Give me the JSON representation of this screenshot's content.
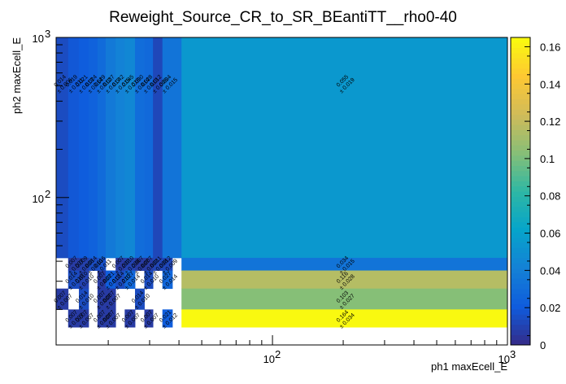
{
  "chart_data": {
    "type": "heatmap",
    "title": "Reweight_Source_CR_to_SR_BEantiTT__rho0-40",
    "xlabel": "ph1 maxEcell_E",
    "ylabel": "ph2 maxEcell_E",
    "x_scale": "log",
    "y_scale": "log",
    "xlim": [
      12,
      1000
    ],
    "ylim": [
      12,
      1000
    ],
    "x_ticks": [
      {
        "value": 100,
        "base": "10",
        "exp": "2"
      },
      {
        "value": 1000,
        "base": "10",
        "exp": "3"
      }
    ],
    "y_ticks": [
      {
        "value": 100,
        "base": "10",
        "exp": "2"
      },
      {
        "value": 1000,
        "base": "10",
        "exp": "3"
      }
    ],
    "zlim": [
      0,
      0.165
    ],
    "colorbar_ticks": [
      "0",
      "0.02",
      "0.04",
      "0.06",
      "0.08",
      "0.1",
      "0.12",
      "0.14",
      "0.16"
    ],
    "colorbar_values": [
      0,
      0.02,
      0.04,
      0.06,
      0.08,
      0.1,
      0.12,
      0.14,
      0.16
    ],
    "palette": [
      "#352a87",
      "#0f5cdd",
      "#1481d6",
      "#06a4ca",
      "#2eb7a4",
      "#87bf77",
      "#d1bb59",
      "#fec832",
      "#f9fb0e"
    ],
    "x_edges": [
      12,
      13.5,
      15,
      16.5,
      18,
      19.5,
      21.5,
      23.5,
      26,
      28.5,
      31,
      34,
      37.5,
      41,
      1000
    ],
    "y_edges": [
      12,
      15.5,
      20,
      27,
      35,
      42,
      1000
    ],
    "cells": [
      {
        "ix": 0,
        "iy": 5,
        "value": 0.014,
        "err": 0.006,
        "label": "0.014",
        "label_err": "± 0.006"
      },
      {
        "ix": 1,
        "iy": 5,
        "value": 0.019,
        "err": 0.011,
        "label": "0.019",
        "label_err": "± 0.011"
      },
      {
        "ix": 2,
        "iy": 5,
        "value": 0.021,
        "err": 0.013,
        "label": "0.021",
        "label_err": "± 0.013"
      },
      {
        "ix": 3,
        "iy": 5,
        "value": 0.024,
        "err": 0.014,
        "label": "0.024",
        "label_err": "± 0.014"
      },
      {
        "ix": 4,
        "iy": 5,
        "value": 0.029,
        "err": 0.012,
        "label": "0.029",
        "label_err": "± 0.012"
      },
      {
        "ix": 5,
        "iy": 5,
        "value": 0.037,
        "err": 0.017,
        "label": "0.037",
        "label_err": "± 0.017"
      },
      {
        "ix": 6,
        "iy": 5,
        "value": 0.042,
        "err": 0.015,
        "label": "0.042",
        "label_err": "± 0.015"
      },
      {
        "ix": 7,
        "iy": 5,
        "value": 0.045,
        "err": 0.018,
        "label": "0.045",
        "label_err": "± 0.018"
      },
      {
        "ix": 8,
        "iy": 5,
        "value": 0.03,
        "err": 0.014,
        "label": "0.030",
        "label_err": "± 0.014"
      },
      {
        "ix": 9,
        "iy": 5,
        "value": 0.028,
        "err": 0.013,
        "label": "0.028",
        "label_err": "± 0.013"
      },
      {
        "ix": 10,
        "iy": 5,
        "value": 0.012,
        "err": 0.006,
        "label": "0.012",
        "label_err": "± 0.006"
      },
      {
        "ix": 11,
        "iy": 5,
        "value": 0.034,
        "err": 0.015,
        "label": "0.034",
        "label_err": "± 0.015"
      },
      {
        "ix": 12,
        "iy": 5,
        "value": 0.034,
        "err": 0.015,
        "label": "",
        "label_err": ""
      },
      {
        "ix": 13,
        "iy": 5,
        "value": 0.055,
        "err": 0.019,
        "label": "0.055",
        "label_err": "± 0.019"
      },
      {
        "ix": 0,
        "iy": 4,
        "value": null
      },
      {
        "ix": 1,
        "iy": 4,
        "value": 0.007,
        "err": 0.007,
        "label": "0.007",
        "label_err": "± 0.007"
      },
      {
        "ix": 2,
        "iy": 4,
        "value": 0.009,
        "err": 0.008,
        "label": "0.009",
        "label_err": "± 0.008"
      },
      {
        "ix": 3,
        "iy": 4,
        "value": 0.014,
        "err": 0.01,
        "label": "0.014",
        "label_err": "± 0.010"
      },
      {
        "ix": 4,
        "iy": 4,
        "value": 0.016,
        "err": 0.011,
        "label": "0.016",
        "label_err": "± 0.011"
      },
      {
        "ix": 5,
        "iy": 4,
        "value": null
      },
      {
        "ix": 6,
        "iy": 4,
        "value": 0.007,
        "err": 0.007,
        "label": "0.007",
        "label_err": "± 0.007"
      },
      {
        "ix": 7,
        "iy": 4,
        "value": 0.01,
        "err": 0.008,
        "label": "0.010",
        "label_err": "± 0.008"
      },
      {
        "ix": 8,
        "iy": 4,
        "value": 0.007,
        "err": 0.007,
        "label": "0.007",
        "label_err": "± 0.007"
      },
      {
        "ix": 9,
        "iy": 4,
        "value": 0.007,
        "err": 0.007,
        "label": "0.007",
        "label_err": "± 0.007"
      },
      {
        "ix": 10,
        "iy": 4,
        "value": 0.011,
        "err": 0.008,
        "label": "0.011",
        "label_err": "± 0.008"
      },
      {
        "ix": 11,
        "iy": 4,
        "value": 0.012,
        "err": 0.009,
        "label": "0.012",
        "label_err": "± 0.009"
      },
      {
        "ix": 12,
        "iy": 4,
        "value": null
      },
      {
        "ix": 13,
        "iy": 4,
        "value": 0.034,
        "err": 0.015,
        "label": "0.034",
        "label_err": "± 0.015"
      },
      {
        "ix": 0,
        "iy": 3,
        "value": null
      },
      {
        "ix": 1,
        "iy": 3,
        "value": 0.014,
        "err": 0.01,
        "label": "0.014",
        "label_err": "± 0.010"
      },
      {
        "ix": 2,
        "iy": 3,
        "value": 0.01,
        "err": 0.01,
        "label": "0.010",
        "label_err": "± 0.010"
      },
      {
        "ix": 3,
        "iy": 3,
        "value": null
      },
      {
        "ix": 4,
        "iy": 3,
        "value": 0.007,
        "err": 0.007,
        "label": "0.007",
        "label_err": "± 0.007"
      },
      {
        "ix": 5,
        "iy": 3,
        "value": 0.021,
        "err": 0.012,
        "label": "0.021",
        "label_err": "± 0.012"
      },
      {
        "ix": 6,
        "iy": 3,
        "value": 0.014,
        "err": 0.01,
        "label": "0.014",
        "label_err": "± 0.010"
      },
      {
        "ix": 7,
        "iy": 3,
        "value": 0.027,
        "err": 0.014,
        "label": "0.027",
        "label_err": "± 0.014"
      },
      {
        "ix": 8,
        "iy": 3,
        "value": null
      },
      {
        "ix": 9,
        "iy": 3,
        "value": 0.014,
        "err": 0.01,
        "label": "0.014",
        "label_err": "± 0.010"
      },
      {
        "ix": 10,
        "iy": 3,
        "value": null
      },
      {
        "ix": 11,
        "iy": 3,
        "value": 0.027,
        "err": 0.014,
        "label": "0.027",
        "label_err": "± 0.014"
      },
      {
        "ix": 12,
        "iy": 3,
        "value": null
      },
      {
        "ix": 13,
        "iy": 3,
        "value": 0.116,
        "err": 0.028,
        "label": "0.116",
        "label_err": "± 0.028"
      },
      {
        "ix": 0,
        "iy": 2,
        "value": 0.007,
        "err": 0.007,
        "label": "0.007",
        "label_err": "± 0.007"
      },
      {
        "ix": 1,
        "iy": 2,
        "value": null
      },
      {
        "ix": 2,
        "iy": 2,
        "value": 0.014,
        "err": 0.01,
        "label": "0.014",
        "label_err": "± 0.010"
      },
      {
        "ix": 3,
        "iy": 2,
        "value": null
      },
      {
        "ix": 4,
        "iy": 2,
        "value": 0.007,
        "err": 0.007,
        "label": "0.007",
        "label_err": "± 0.007"
      },
      {
        "ix": 5,
        "iy": 2,
        "value": 0.007,
        "err": 0.007,
        "label": "0.007",
        "label_err": "± 0.007"
      },
      {
        "ix": 6,
        "iy": 2,
        "value": null
      },
      {
        "ix": 7,
        "iy": 2,
        "value": null
      },
      {
        "ix": 8,
        "iy": 2,
        "value": 0.014,
        "err": 0.01,
        "label": "0.014",
        "label_err": "± 0.010"
      },
      {
        "ix": 9,
        "iy": 2,
        "value": null
      },
      {
        "ix": 10,
        "iy": 2,
        "value": null
      },
      {
        "ix": 11,
        "iy": 2,
        "value": null
      },
      {
        "ix": 12,
        "iy": 2,
        "value": null
      },
      {
        "ix": 13,
        "iy": 2,
        "value": 0.103,
        "err": 0.027,
        "label": "0.103",
        "label_err": "± 0.027"
      },
      {
        "ix": 0,
        "iy": 1,
        "value": null
      },
      {
        "ix": 1,
        "iy": 1,
        "value": 0.007,
        "err": 0.007,
        "label": "0.007",
        "label_err": "± 0.007"
      },
      {
        "ix": 2,
        "iy": 1,
        "value": 0.007,
        "err": 0.007,
        "label": "0.007",
        "label_err": "± 0.007"
      },
      {
        "ix": 3,
        "iy": 1,
        "value": null
      },
      {
        "ix": 4,
        "iy": 1,
        "value": 0.007,
        "err": 0.007,
        "label": "0.007",
        "label_err": "± 0.007"
      },
      {
        "ix": 5,
        "iy": 1,
        "value": 0.007,
        "err": 0.007,
        "label": "0.007",
        "label_err": "± 0.007"
      },
      {
        "ix": 6,
        "iy": 1,
        "value": null
      },
      {
        "ix": 7,
        "iy": 1,
        "value": 0.007,
        "err": 0.007,
        "label": "0.007",
        "label_err": "± 0.007"
      },
      {
        "ix": 8,
        "iy": 1,
        "value": null
      },
      {
        "ix": 9,
        "iy": 1,
        "value": 0.007,
        "err": 0.007,
        "label": "0.007",
        "label_err": "± 0.007"
      },
      {
        "ix": 10,
        "iy": 1,
        "value": null
      },
      {
        "ix": 11,
        "iy": 1,
        "value": 0.021,
        "err": 0.012,
        "label": "0.021",
        "label_err": "± 0.012"
      },
      {
        "ix": 12,
        "iy": 1,
        "value": null
      },
      {
        "ix": 13,
        "iy": 1,
        "value": 0.164,
        "err": 0.034,
        "label": "0.164",
        "label_err": "± 0.034"
      },
      {
        "ix": 0,
        "iy": 0,
        "value": null
      },
      {
        "ix": 1,
        "iy": 0,
        "value": null
      },
      {
        "ix": 2,
        "iy": 0,
        "value": null
      },
      {
        "ix": 3,
        "iy": 0,
        "value": null
      },
      {
        "ix": 4,
        "iy": 0,
        "value": null
      },
      {
        "ix": 5,
        "iy": 0,
        "value": null
      },
      {
        "ix": 6,
        "iy": 0,
        "value": null
      },
      {
        "ix": 7,
        "iy": 0,
        "value": null
      },
      {
        "ix": 8,
        "iy": 0,
        "value": null
      },
      {
        "ix": 9,
        "iy": 0,
        "value": null
      },
      {
        "ix": 10,
        "iy": 0,
        "value": null
      },
      {
        "ix": 11,
        "iy": 0,
        "value": null
      },
      {
        "ix": 12,
        "iy": 0,
        "value": null
      },
      {
        "ix": 13,
        "iy": 0,
        "value": null
      }
    ]
  }
}
